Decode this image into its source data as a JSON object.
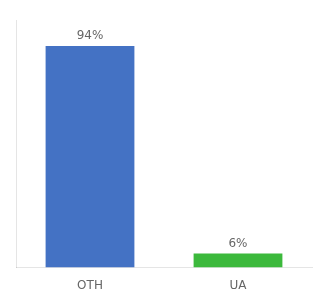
{
  "chart_data": {
    "type": "bar",
    "categories": [
      "OTH",
      "UA"
    ],
    "values": [
      94,
      6
    ],
    "value_labels": [
      "94%",
      "6%"
    ],
    "colors": [
      "#4472C4",
      "#3CB93C"
    ],
    "ylim": [
      0,
      105
    ],
    "data_labels": true,
    "tick_labels": "x",
    "grid": false
  }
}
